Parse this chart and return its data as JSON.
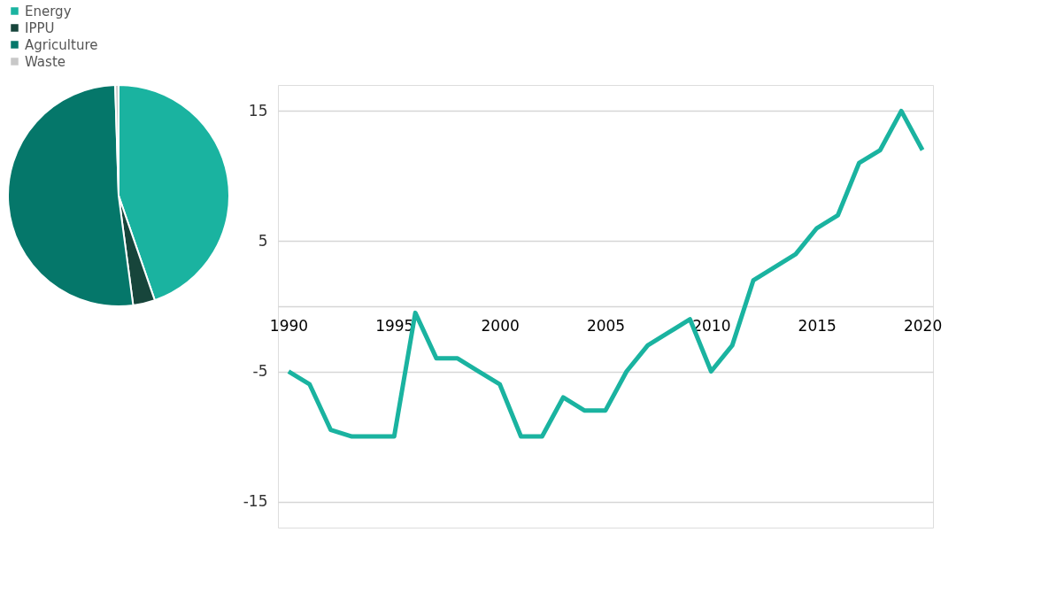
{
  "chart_data": [
    {
      "type": "pie",
      "categories": [
        "Energy",
        "IPPU",
        "Agriculture",
        "Waste"
      ],
      "values": [
        44.7,
        3.2,
        51.6,
        0.5
      ],
      "colors": [
        "#1ab3a0",
        "#17453b",
        "#05776a",
        "#c8c8c8"
      ],
      "legend": "top left"
    },
    {
      "type": "line",
      "x": [
        1990,
        1991,
        1992,
        1993,
        1994,
        1995,
        1996,
        1997,
        1998,
        1999,
        2000,
        2001,
        2002,
        2003,
        2004,
        2005,
        2006,
        2007,
        2008,
        2009,
        2010,
        2011,
        2012,
        2013,
        2014,
        2015,
        2016,
        2017,
        2018,
        2019,
        2020
      ],
      "series": [
        {
          "color": "#1ab3a0",
          "values": [
            -5,
            -6,
            -9.5,
            -10,
            -10,
            -10,
            -0.5,
            -4,
            -4,
            -5,
            -6,
            -10,
            -10,
            -7,
            -8,
            -8,
            -5,
            -3,
            -2,
            -1,
            -5,
            -3,
            2,
            3,
            4,
            6,
            7,
            11,
            12,
            15,
            12
          ]
        }
      ],
      "xlim": [
        1989.5,
        2020.5
      ],
      "xticks": [
        1990,
        1995,
        2000,
        2005,
        2010,
        2015,
        2020
      ],
      "ylim": [
        -17,
        17
      ],
      "yticks": [
        15,
        5,
        {
          "value": 0,
          "label": null
        },
        -5,
        -15
      ],
      "grid": "y",
      "marker": "none",
      "line_style": "solid"
    }
  ]
}
